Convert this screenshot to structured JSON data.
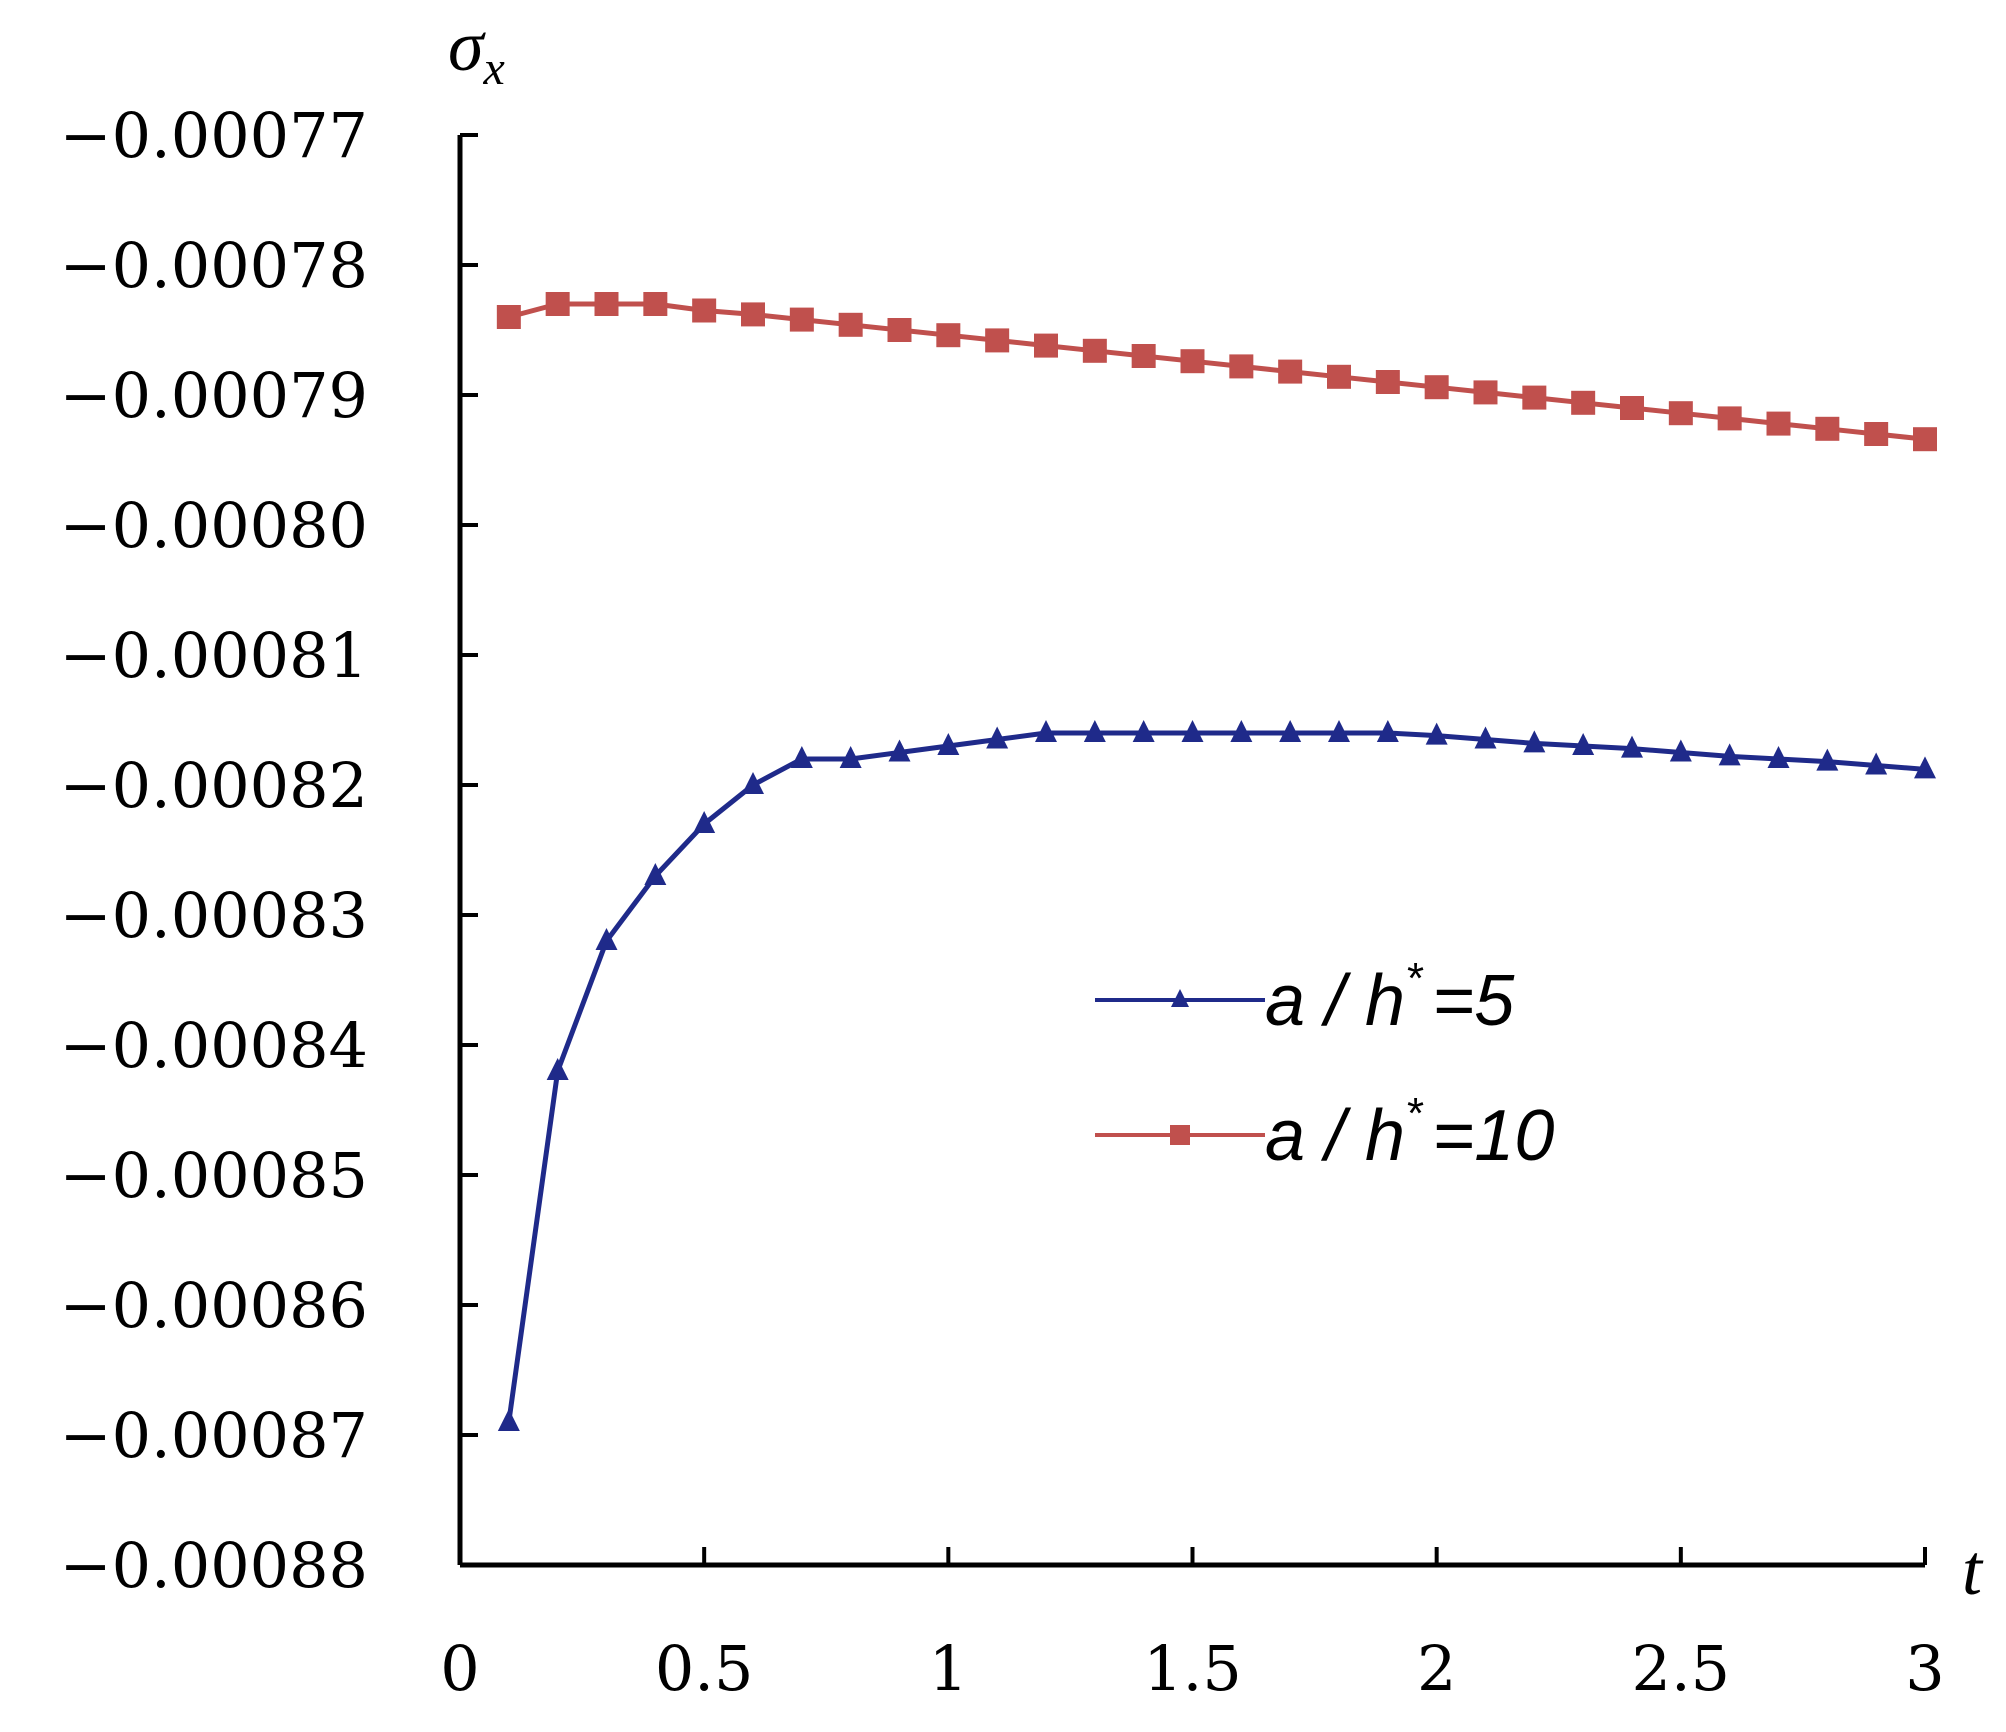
{
  "chart_data": {
    "type": "line",
    "xlabel": "t",
    "ylabel": "σx",
    "ylabel_main": "σ",
    "ylabel_sub": "x",
    "xlim": [
      0,
      3
    ],
    "ylim": [
      -0.00088,
      -0.00077
    ],
    "xticks": [
      0,
      0.5,
      1,
      1.5,
      2,
      2.5,
      3
    ],
    "xtick_labels": [
      "0",
      "0.5",
      "1",
      "1.5",
      "2",
      "2.5",
      "3"
    ],
    "yticks": [
      -0.00077,
      -0.00078,
      -0.00079,
      -0.0008,
      -0.00081,
      -0.00082,
      -0.00083,
      -0.00084,
      -0.00085,
      -0.00086,
      -0.00087,
      -0.00088
    ],
    "ytick_labels": [
      "−0.00077",
      "−0.00078",
      "−0.00079",
      "−0.00080",
      "−0.00081",
      "−0.00082",
      "−0.00083",
      "−0.00084",
      "−0.00085",
      "−0.00086",
      "−0.00087",
      "−0.00088"
    ],
    "grid": false,
    "legend_position": "center-right",
    "x": [
      0.1,
      0.2,
      0.3,
      0.4,
      0.5,
      0.6,
      0.7,
      0.8,
      0.9,
      1.0,
      1.1,
      1.2,
      1.3,
      1.4,
      1.5,
      1.6,
      1.7,
      1.8,
      1.9,
      2.0,
      2.1,
      2.2,
      2.3,
      2.4,
      2.5,
      2.6,
      2.7,
      2.8,
      2.9,
      3.0
    ],
    "series": [
      {
        "name": "a / h* = 5",
        "color": "#1f2a8a",
        "marker": "triangle",
        "values": [
          -0.000869,
          -0.000842,
          -0.000832,
          -0.000827,
          -0.000823,
          -0.00082,
          -0.000818,
          -0.000818,
          -0.0008175,
          -0.000817,
          -0.0008165,
          -0.000816,
          -0.000816,
          -0.000816,
          -0.000816,
          -0.000816,
          -0.000816,
          -0.000816,
          -0.000816,
          -0.0008162,
          -0.0008165,
          -0.0008168,
          -0.000817,
          -0.0008172,
          -0.0008175,
          -0.0008178,
          -0.000818,
          -0.0008182,
          -0.0008185,
          -0.0008188
        ]
      },
      {
        "name": "a / h* = 10",
        "color": "#c0504d",
        "marker": "square",
        "values": [
          -0.000784,
          -0.000783,
          -0.000783,
          -0.000783,
          -0.0007835,
          -0.0007838,
          -0.0007842,
          -0.0007846,
          -0.000785,
          -0.0007854,
          -0.0007858,
          -0.0007862,
          -0.0007866,
          -0.000787,
          -0.0007874,
          -0.0007878,
          -0.0007882,
          -0.0007886,
          -0.000789,
          -0.0007894,
          -0.0007898,
          -0.0007902,
          -0.0007906,
          -0.000791,
          -0.0007914,
          -0.0007918,
          -0.0007922,
          -0.0007926,
          -0.000793,
          -0.0007934
        ]
      }
    ]
  },
  "legend": [
    {
      "var": "a / h",
      "sup": "*",
      "eq": "=5"
    },
    {
      "var": "a / h",
      "sup": "*",
      "eq": "=10"
    }
  ]
}
